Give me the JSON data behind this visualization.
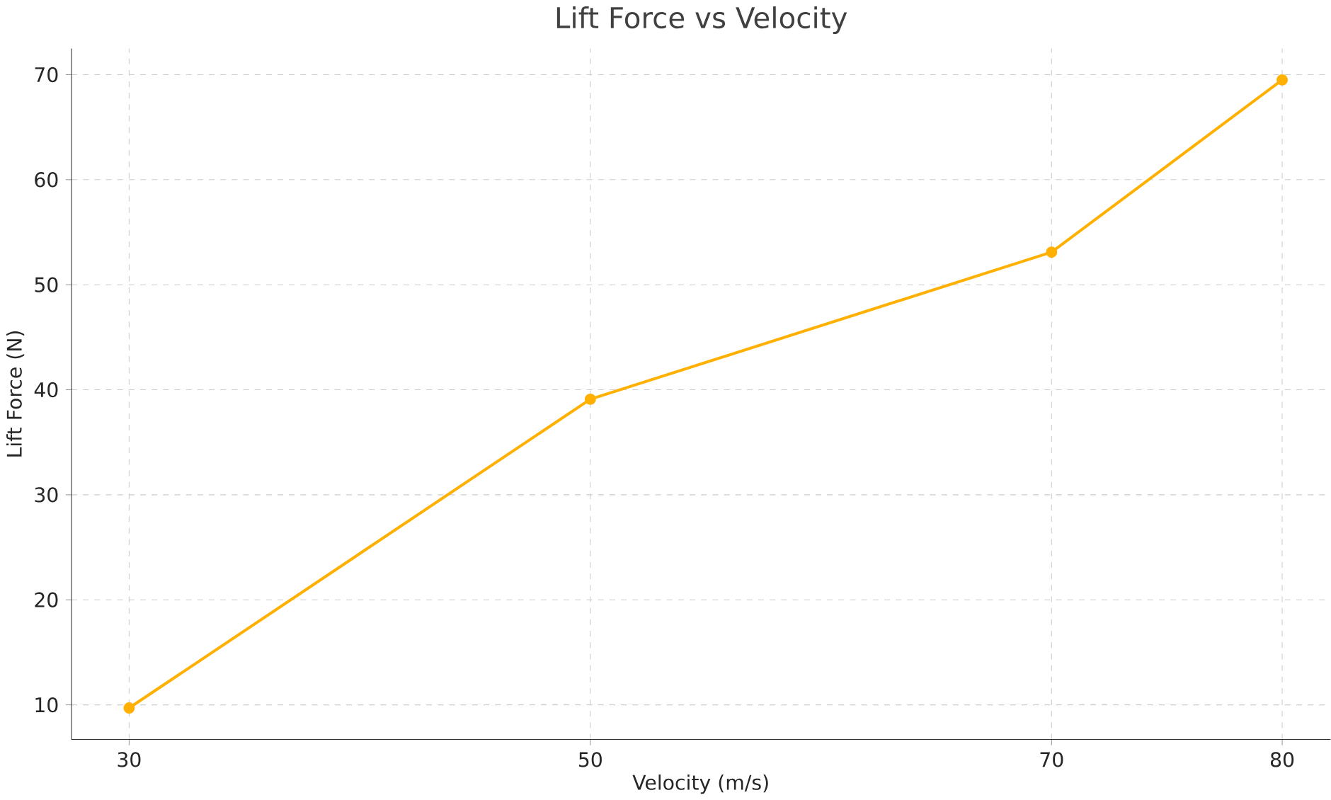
{
  "chart_data": {
    "type": "line",
    "title": "Lift Force vs Velocity",
    "xlabel": "Velocity (m/s)",
    "ylabel": "Lift Force (N)",
    "x": [
      30,
      50,
      70,
      80
    ],
    "series": [
      {
        "color": "#ffb000",
        "values": [
          9.7,
          39.1,
          53.1,
          69.5
        ]
      }
    ],
    "xlim": [
      27.5,
      82.1
    ],
    "ylim": [
      6.7,
      72.5
    ],
    "xticks": [
      30,
      50,
      70,
      80
    ],
    "yticks": [
      10,
      20,
      30,
      40,
      50,
      60,
      70
    ],
    "grid": true,
    "marker": "circle",
    "line_style": "solid"
  }
}
